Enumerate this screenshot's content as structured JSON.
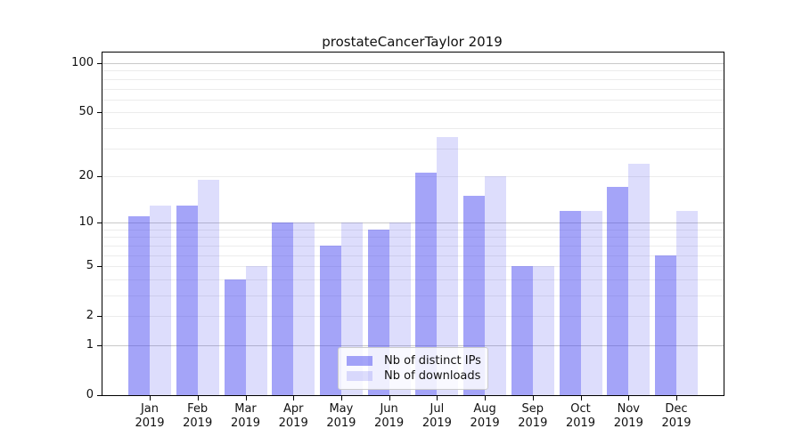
{
  "title": "prostateCancerTaylor 2019",
  "colors": {
    "series": [
      "rgba(64,64,240,0.48)",
      "rgba(64,64,240,0.18)"
    ],
    "grid_major": "#c9c9c9",
    "grid_minor": "#ececec",
    "axis": "#000000",
    "text": "#111111",
    "legend_border": "#cccccc"
  },
  "chart_data": {
    "type": "bar",
    "title": "prostateCancerTaylor 2019",
    "xlabel": "",
    "ylabel": "",
    "yscale": "log1p",
    "ylim": [
      0,
      100
    ],
    "yticks": [
      0,
      1,
      2,
      5,
      10,
      20,
      50,
      100
    ],
    "major_gridlines": [
      1,
      10,
      100
    ],
    "minor_gridlines": [
      2,
      3,
      4,
      5,
      6,
      7,
      8,
      9,
      20,
      30,
      40,
      50,
      60,
      70,
      80,
      90
    ],
    "grid": "on",
    "legend_position": "lower center",
    "year": "2019",
    "categories": [
      "Jan",
      "Feb",
      "Mar",
      "Apr",
      "May",
      "Jun",
      "Jul",
      "Aug",
      "Sep",
      "Oct",
      "Nov",
      "Dec"
    ],
    "series": [
      {
        "name": "Nb of distinct IPs",
        "values": [
          11,
          13,
          4,
          10,
          7,
          9,
          21,
          15,
          5,
          12,
          17,
          6
        ]
      },
      {
        "name": "Nb of downloads",
        "values": [
          13,
          19,
          5,
          10,
          10,
          10,
          35,
          20,
          5,
          12,
          24,
          12
        ]
      }
    ]
  }
}
